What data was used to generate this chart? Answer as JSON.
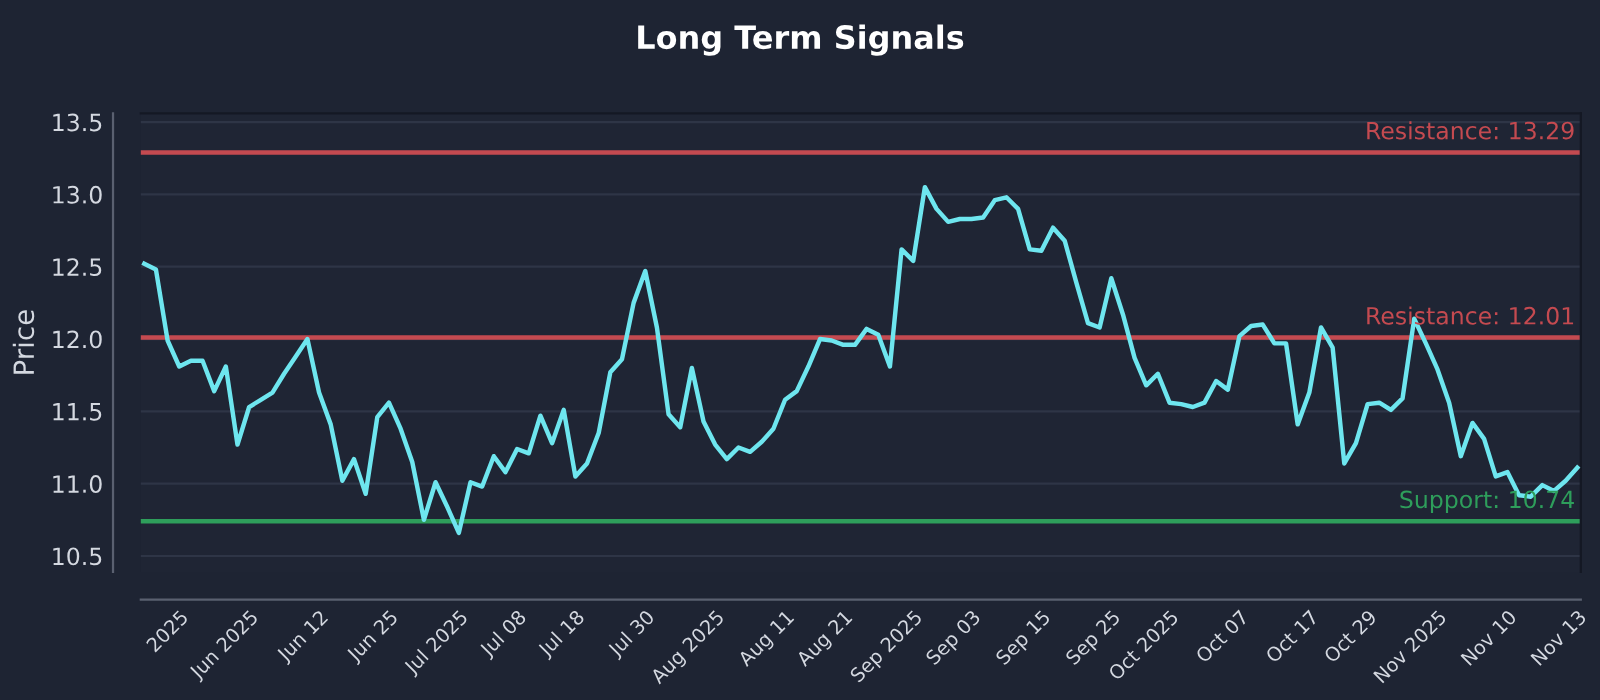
{
  "chart_data": {
    "type": "line",
    "title": "Long Term Signals",
    "ylabel": "Price",
    "categories": [
      null,
      null,
      null,
      "2025",
      null,
      null,
      null,
      null,
      null,
      "Jun 2025",
      null,
      null,
      null,
      null,
      null,
      "Jun 12",
      null,
      null,
      null,
      null,
      null,
      "Jun 25",
      null,
      null,
      null,
      null,
      null,
      "Jul 2025",
      null,
      null,
      null,
      null,
      "Jul 08",
      null,
      null,
      null,
      null,
      "Jul 18",
      null,
      null,
      null,
      null,
      null,
      "Jul 30",
      null,
      null,
      null,
      null,
      null,
      "Aug 2025",
      null,
      null,
      null,
      null,
      null,
      "Aug 11",
      null,
      null,
      null,
      null,
      "Aug 21",
      null,
      null,
      null,
      null,
      null,
      "Sep 2025",
      null,
      null,
      null,
      null,
      "Sep 03",
      null,
      null,
      null,
      null,
      null,
      "Sep 15",
      null,
      null,
      null,
      null,
      null,
      "Sep 25",
      null,
      null,
      null,
      null,
      "Oct 2025",
      null,
      null,
      null,
      null,
      null,
      "Oct 07",
      null,
      null,
      null,
      null,
      null,
      "Oct 17",
      null,
      null,
      null,
      null,
      "Oct 29",
      null,
      null,
      null,
      null,
      null,
      "Nov 2025",
      null,
      null,
      null,
      null,
      null,
      "Nov 10",
      null,
      null,
      null,
      null,
      null,
      "Nov 13"
    ],
    "series": [
      {
        "color": "#6ee6ef",
        "values": [
          12.52,
          12.48,
          11.99,
          11.81,
          11.85,
          11.85,
          11.64,
          11.81,
          11.27,
          11.53,
          11.58,
          11.63,
          11.76,
          11.88,
          12.0,
          11.63,
          11.41,
          11.02,
          11.17,
          10.93,
          11.46,
          11.56,
          11.38,
          11.15,
          10.75,
          11.01,
          10.84,
          10.66,
          11.01,
          10.98,
          11.19,
          11.08,
          11.24,
          11.21,
          11.47,
          11.28,
          11.51,
          11.05,
          11.14,
          11.35,
          11.77,
          11.86,
          12.25,
          12.47,
          12.08,
          11.48,
          11.39,
          11.8,
          11.43,
          11.27,
          11.17,
          11.25,
          11.22,
          11.29,
          11.38,
          11.58,
          11.64,
          11.81,
          12.0,
          11.99,
          11.96,
          11.96,
          12.07,
          12.03,
          11.81,
          12.62,
          12.54,
          13.05,
          12.9,
          12.81,
          12.83,
          12.83,
          12.84,
          12.96,
          12.98,
          12.9,
          12.62,
          12.61,
          12.77,
          12.68,
          12.39,
          12.11,
          12.08,
          12.42,
          12.17,
          11.87,
          11.68,
          11.76,
          11.56,
          11.55,
          11.53,
          11.56,
          11.71,
          11.65,
          12.02,
          12.09,
          12.1,
          11.97,
          11.97,
          11.41,
          11.63,
          12.08,
          11.94,
          11.14,
          11.28,
          11.55,
          11.56,
          11.51,
          11.59,
          12.14,
          11.97,
          11.79,
          11.56,
          11.19,
          11.42,
          11.31,
          11.05,
          11.08,
          10.92,
          10.91,
          10.99,
          10.95,
          11.02,
          11.11
        ]
      }
    ],
    "ylim": [
      10.39,
      13.56
    ],
    "yticks": [
      10.5,
      {
        "value": 11,
        "label": "11.0"
      },
      11.5,
      {
        "value": 12,
        "label": "12.0"
      },
      12.5,
      {
        "value": 13,
        "label": "13.0"
      },
      13.5
    ],
    "grid": "y",
    "marker": "none",
    "line_style": "solid",
    "ref_lines": [
      {
        "axis": "y",
        "value": 13.29,
        "label": "Resistance: 13.29",
        "color": "#c44a50"
      },
      {
        "axis": "y",
        "value": 12.01,
        "label": "Resistance: 12.01",
        "color": "#c44a50"
      },
      {
        "axis": "y",
        "value": 10.74,
        "label": "Support: 10.74",
        "color": "#2e9e5b"
      }
    ]
  }
}
